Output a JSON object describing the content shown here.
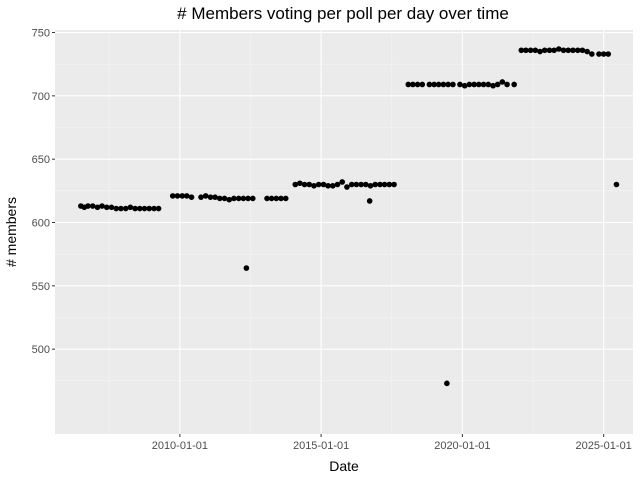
{
  "chart_data": {
    "type": "scatter",
    "title": "# Members voting per poll per day over time",
    "xlabel": "Date",
    "ylabel": "# members",
    "xlim": [
      "2005-08-01",
      "2026-01-15"
    ],
    "ylim": [
      433,
      752
    ],
    "x_ticks": [
      "2010-01-01",
      "2015-01-01",
      "2020-01-01",
      "2025-01-01"
    ],
    "y_ticks": [
      500,
      550,
      600,
      650,
      700,
      750
    ],
    "grid": true,
    "legend": "none",
    "colors": {
      "panel": "#ebebeb",
      "grid_major": "#ffffff",
      "grid_minor": "#f4f4f4",
      "point": "#000000"
    },
    "points": [
      {
        "x": "2006-07-01",
        "y": 613
      },
      {
        "x": "2006-08-15",
        "y": 612
      },
      {
        "x": "2006-10-01",
        "y": 613
      },
      {
        "x": "2006-12-01",
        "y": 613
      },
      {
        "x": "2007-02-01",
        "y": 612
      },
      {
        "x": "2007-04-01",
        "y": 613
      },
      {
        "x": "2007-06-01",
        "y": 612
      },
      {
        "x": "2007-08-01",
        "y": 612
      },
      {
        "x": "2007-10-01",
        "y": 611
      },
      {
        "x": "2007-12-01",
        "y": 611
      },
      {
        "x": "2008-02-01",
        "y": 611
      },
      {
        "x": "2008-04-01",
        "y": 612
      },
      {
        "x": "2008-06-01",
        "y": 611
      },
      {
        "x": "2008-08-01",
        "y": 611
      },
      {
        "x": "2008-10-01",
        "y": 611
      },
      {
        "x": "2008-12-01",
        "y": 611
      },
      {
        "x": "2009-02-01",
        "y": 611
      },
      {
        "x": "2009-04-01",
        "y": 611
      },
      {
        "x": "2009-10-01",
        "y": 621
      },
      {
        "x": "2009-12-01",
        "y": 621
      },
      {
        "x": "2010-02-01",
        "y": 621
      },
      {
        "x": "2010-04-01",
        "y": 621
      },
      {
        "x": "2010-06-01",
        "y": 620
      },
      {
        "x": "2010-10-01",
        "y": 620
      },
      {
        "x": "2010-12-01",
        "y": 621
      },
      {
        "x": "2011-02-01",
        "y": 620
      },
      {
        "x": "2011-04-01",
        "y": 620
      },
      {
        "x": "2011-06-01",
        "y": 619
      },
      {
        "x": "2011-08-01",
        "y": 619
      },
      {
        "x": "2011-10-01",
        "y": 618
      },
      {
        "x": "2011-12-01",
        "y": 619
      },
      {
        "x": "2012-02-01",
        "y": 619
      },
      {
        "x": "2012-04-01",
        "y": 619
      },
      {
        "x": "2012-06-01",
        "y": 619
      },
      {
        "x": "2012-08-01",
        "y": 619
      },
      {
        "x": "2012-05-10",
        "y": 564
      },
      {
        "x": "2013-02-01",
        "y": 619
      },
      {
        "x": "2013-04-01",
        "y": 619
      },
      {
        "x": "2013-06-01",
        "y": 619
      },
      {
        "x": "2013-08-01",
        "y": 619
      },
      {
        "x": "2013-10-01",
        "y": 619
      },
      {
        "x": "2014-02-01",
        "y": 630
      },
      {
        "x": "2014-04-01",
        "y": 631
      },
      {
        "x": "2014-06-01",
        "y": 630
      },
      {
        "x": "2014-08-01",
        "y": 630
      },
      {
        "x": "2014-10-01",
        "y": 629
      },
      {
        "x": "2014-12-01",
        "y": 630
      },
      {
        "x": "2015-02-01",
        "y": 630
      },
      {
        "x": "2015-04-01",
        "y": 629
      },
      {
        "x": "2015-06-01",
        "y": 629
      },
      {
        "x": "2015-08-01",
        "y": 630
      },
      {
        "x": "2015-10-01",
        "y": 632
      },
      {
        "x": "2015-12-01",
        "y": 628
      },
      {
        "x": "2016-02-01",
        "y": 630
      },
      {
        "x": "2016-04-01",
        "y": 630
      },
      {
        "x": "2016-06-01",
        "y": 630
      },
      {
        "x": "2016-08-01",
        "y": 630
      },
      {
        "x": "2016-10-01",
        "y": 629
      },
      {
        "x": "2016-09-20",
        "y": 617
      },
      {
        "x": "2016-12-01",
        "y": 630
      },
      {
        "x": "2017-02-01",
        "y": 630
      },
      {
        "x": "2017-04-01",
        "y": 630
      },
      {
        "x": "2017-06-01",
        "y": 630
      },
      {
        "x": "2017-08-01",
        "y": 630
      },
      {
        "x": "2018-02-01",
        "y": 709
      },
      {
        "x": "2018-04-01",
        "y": 709
      },
      {
        "x": "2018-06-01",
        "y": 709
      },
      {
        "x": "2018-08-01",
        "y": 709
      },
      {
        "x": "2018-11-01",
        "y": 709
      },
      {
        "x": "2019-01-01",
        "y": 709
      },
      {
        "x": "2019-03-01",
        "y": 709
      },
      {
        "x": "2019-05-01",
        "y": 709
      },
      {
        "x": "2019-07-01",
        "y": 709
      },
      {
        "x": "2019-09-01",
        "y": 709
      },
      {
        "x": "2019-06-15",
        "y": 473
      },
      {
        "x": "2019-12-01",
        "y": 709
      },
      {
        "x": "2020-02-01",
        "y": 708
      },
      {
        "x": "2020-04-01",
        "y": 709
      },
      {
        "x": "2020-06-01",
        "y": 709
      },
      {
        "x": "2020-08-01",
        "y": 709
      },
      {
        "x": "2020-10-01",
        "y": 709
      },
      {
        "x": "2020-12-01",
        "y": 709
      },
      {
        "x": "2021-02-01",
        "y": 708
      },
      {
        "x": "2021-04-01",
        "y": 709
      },
      {
        "x": "2021-06-01",
        "y": 711
      },
      {
        "x": "2021-08-01",
        "y": 709
      },
      {
        "x": "2021-11-01",
        "y": 709
      },
      {
        "x": "2022-02-01",
        "y": 736
      },
      {
        "x": "2022-04-01",
        "y": 736
      },
      {
        "x": "2022-06-01",
        "y": 736
      },
      {
        "x": "2022-08-01",
        "y": 736
      },
      {
        "x": "2022-10-01",
        "y": 735
      },
      {
        "x": "2022-12-01",
        "y": 736
      },
      {
        "x": "2023-02-01",
        "y": 736
      },
      {
        "x": "2023-04-01",
        "y": 736
      },
      {
        "x": "2023-06-01",
        "y": 737
      },
      {
        "x": "2023-08-01",
        "y": 736
      },
      {
        "x": "2023-10-01",
        "y": 736
      },
      {
        "x": "2023-12-01",
        "y": 736
      },
      {
        "x": "2024-02-01",
        "y": 736
      },
      {
        "x": "2024-04-01",
        "y": 736
      },
      {
        "x": "2024-06-01",
        "y": 735
      },
      {
        "x": "2024-08-01",
        "y": 733
      },
      {
        "x": "2024-11-01",
        "y": 733
      },
      {
        "x": "2025-01-01",
        "y": 733
      },
      {
        "x": "2025-03-01",
        "y": 733
      },
      {
        "x": "2025-06-15",
        "y": 630
      }
    ]
  }
}
